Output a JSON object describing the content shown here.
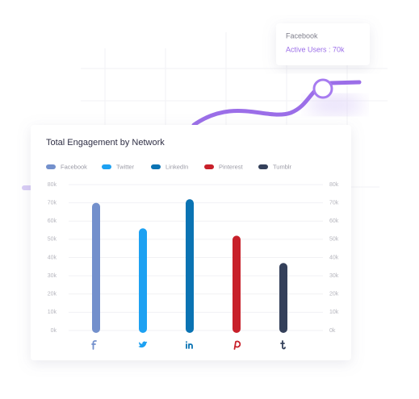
{
  "tooltip": {
    "title": "Facebook",
    "text": "Active Users : 70k"
  },
  "chart_data": {
    "type": "bar",
    "title": "Total Engagement by Network",
    "categories": [
      "Facebook",
      "Twitter",
      "LinkedIn",
      "Pinterest",
      "Tumblr"
    ],
    "values": [
      70,
      56,
      72,
      52,
      37
    ],
    "colors": [
      "#7390cc",
      "#1da1f2",
      "#0a73b3",
      "#c8202a",
      "#34405a"
    ],
    "ylim": [
      0,
      80
    ],
    "yticks": [
      {
        "value": 0,
        "label": "0k"
      },
      {
        "value": 10,
        "label": "10k"
      },
      {
        "value": 20,
        "label": "20k"
      },
      {
        "value": 30,
        "label": "30k"
      },
      {
        "value": 40,
        "label": "40k"
      },
      {
        "value": 50,
        "label": "50k"
      },
      {
        "value": 60,
        "label": "60k"
      },
      {
        "value": 70,
        "label": "70k"
      },
      {
        "value": 80,
        "label": "80k"
      }
    ],
    "grid": true,
    "legend": "top"
  }
}
